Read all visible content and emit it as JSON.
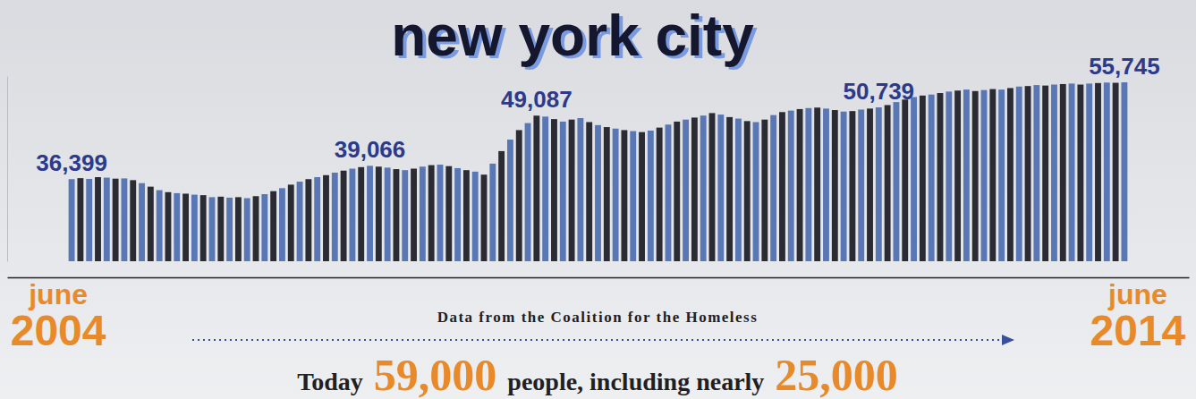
{
  "chart_data": {
    "type": "bar",
    "title": "new york city",
    "source": "Data from the Coalition for the Homeless",
    "annotations": [
      "Today",
      "59,000",
      "people, including nearly",
      "25,000"
    ],
    "categories": [
      "june 2004",
      null,
      null,
      null,
      null,
      null,
      null,
      null,
      null,
      null,
      null,
      null,
      null,
      null,
      null,
      null,
      null,
      null,
      null,
      null,
      null,
      null,
      null,
      null,
      null,
      null,
      null,
      null,
      null,
      null,
      null,
      null,
      null,
      null,
      null,
      null,
      null,
      null,
      null,
      null,
      null,
      null,
      null,
      null,
      null,
      null,
      null,
      null,
      null,
      null,
      null,
      null,
      null,
      null,
      null,
      null,
      null,
      null,
      null,
      null,
      null,
      null,
      null,
      null,
      null,
      null,
      null,
      null,
      null,
      null,
      null,
      null,
      null,
      null,
      null,
      null,
      null,
      null,
      null,
      null,
      null,
      null,
      null,
      null,
      null,
      null,
      null,
      null,
      null,
      null,
      null,
      null,
      null,
      null,
      null,
      null,
      null,
      null,
      null,
      null,
      null,
      null,
      null,
      null,
      null,
      null,
      null,
      null,
      null,
      null,
      null,
      null,
      null,
      null,
      null,
      null,
      null,
      null,
      null,
      null,
      "june 2014"
    ],
    "values": [
      36399,
      36600,
      36450,
      36800,
      36700,
      36500,
      36550,
      36200,
      35600,
      34900,
      34200,
      33800,
      33600,
      33500,
      33300,
      33200,
      32800,
      32900,
      32700,
      32800,
      32600,
      33000,
      33400,
      34000,
      34600,
      35300,
      35900,
      36400,
      36800,
      37200,
      37700,
      38100,
      38500,
      38800,
      39066,
      38900,
      38700,
      38400,
      38200,
      38500,
      38900,
      39200,
      39300,
      39000,
      38600,
      38200,
      37900,
      37300,
      39500,
      42000,
      44300,
      46200,
      47600,
      49087,
      48900,
      48400,
      47900,
      48300,
      48600,
      47800,
      47200,
      46800,
      46500,
      46200,
      46000,
      45800,
      46100,
      46700,
      47300,
      47900,
      48300,
      48700,
      49100,
      49600,
      49300,
      48800,
      48500,
      48000,
      47800,
      48300,
      49200,
      49800,
      50100,
      50400,
      50600,
      50700,
      50500,
      50200,
      49900,
      50000,
      50300,
      50500,
      50739,
      51200,
      51800,
      52300,
      52800,
      53100,
      53300,
      53600,
      53900,
      54100,
      54300,
      54000,
      54200,
      54400,
      54300,
      54600,
      54900,
      55000,
      55200,
      55100,
      55300,
      55400,
      55500,
      55300,
      55500,
      55600,
      55700,
      55650,
      55745
    ],
    "value_labels": [
      "36,399",
      null,
      null,
      null,
      null,
      null,
      null,
      null,
      null,
      null,
      null,
      null,
      null,
      null,
      null,
      null,
      null,
      null,
      null,
      null,
      null,
      null,
      null,
      null,
      null,
      null,
      null,
      null,
      null,
      null,
      null,
      null,
      null,
      null,
      "39,066",
      null,
      null,
      null,
      null,
      null,
      null,
      null,
      null,
      null,
      null,
      null,
      null,
      null,
      null,
      null,
      null,
      null,
      null,
      "49,087",
      null,
      null,
      null,
      null,
      null,
      null,
      null,
      null,
      null,
      null,
      null,
      null,
      null,
      null,
      null,
      null,
      null,
      null,
      null,
      null,
      null,
      null,
      null,
      null,
      null,
      null,
      null,
      null,
      null,
      null,
      null,
      null,
      null,
      null,
      null,
      null,
      null,
      null,
      "50,739",
      null,
      null,
      null,
      null,
      null,
      null,
      null,
      null,
      null,
      null,
      null,
      null,
      null,
      null,
      null,
      null,
      null,
      null,
      null,
      null,
      null,
      null,
      null,
      null,
      null,
      null,
      null,
      "55,745"
    ],
    "colors": [
      "#5a77b5",
      "#2b2c33",
      "#5a77b5",
      "#2b2c33",
      "#5a77b5",
      "#2b2c33",
      "#5a77b5",
      "#2b2c33",
      "#5a77b5",
      "#2b2c33",
      "#5a77b5",
      "#2b2c33",
      "#5a77b5",
      "#2b2c33",
      "#5a77b5",
      "#2b2c33",
      "#5a77b5",
      "#2b2c33",
      "#5a77b5",
      "#2b2c33",
      "#5a77b5",
      "#2b2c33",
      "#5a77b5",
      "#2b2c33",
      "#5a77b5",
      "#2b2c33",
      "#5a77b5",
      "#2b2c33",
      "#5a77b5",
      "#2b2c33",
      "#5a77b5",
      "#2b2c33",
      "#5a77b5",
      "#2b2c33",
      "#5a77b5",
      "#2b2c33",
      "#5a77b5",
      "#2b2c33",
      "#5a77b5",
      "#2b2c33",
      "#5a77b5",
      "#2b2c33",
      "#5a77b5",
      "#2b2c33",
      "#5a77b5",
      "#2b2c33",
      "#5a77b5",
      "#2b2c33",
      "#5a77b5",
      "#2b2c33",
      "#5a77b5",
      "#2b2c33",
      "#5a77b5",
      "#2b2c33",
      "#5a77b5",
      "#2b2c33",
      "#5a77b5",
      "#2b2c33",
      "#5a77b5",
      "#2b2c33",
      "#5a77b5",
      "#2b2c33",
      "#5a77b5",
      "#2b2c33",
      "#5a77b5",
      "#2b2c33",
      "#5a77b5",
      "#2b2c33",
      "#5a77b5",
      "#2b2c33",
      "#5a77b5",
      "#2b2c33",
      "#5a77b5",
      "#2b2c33",
      "#5a77b5",
      "#2b2c33",
      "#5a77b5",
      "#2b2c33",
      "#5a77b5",
      "#2b2c33",
      "#5a77b5",
      "#2b2c33",
      "#5a77b5",
      "#2b2c33",
      "#5a77b5",
      "#2b2c33",
      "#5a77b5",
      "#2b2c33",
      "#5a77b5",
      "#2b2c33",
      "#5a77b5",
      "#2b2c33",
      "#5a77b5",
      "#2b2c33",
      "#5a77b5",
      "#2b2c33",
      "#5a77b5",
      "#2b2c33",
      "#5a77b5",
      "#2b2c33",
      "#5a77b5",
      "#2b2c33",
      "#5a77b5",
      "#2b2c33",
      "#5a77b5",
      "#2b2c33",
      "#5a77b5",
      "#2b2c33",
      "#5a77b5",
      "#2b2c33",
      "#5a77b5",
      "#2b2c33",
      "#5a77b5",
      "#2b2c33",
      "#5a77b5",
      "#2b2c33",
      "#5a77b5",
      "#2b2c33",
      "#5a77b5",
      "#2b2c33",
      "#5a77b5"
    ],
    "ylim": [
      20000,
      57000
    ],
    "grid": false,
    "data_labels": true,
    "tick_labels": "x"
  }
}
